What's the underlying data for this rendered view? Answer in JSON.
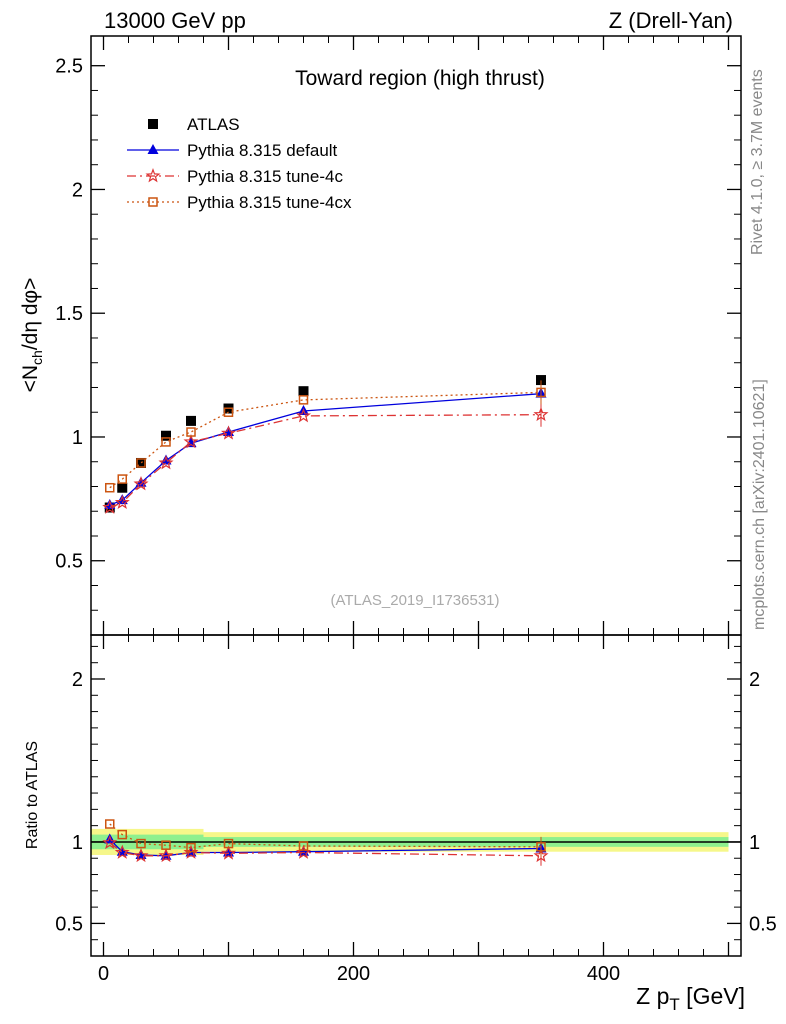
{
  "header": {
    "left": "13000 GeV pp",
    "right": "Z (Drell-Yan)"
  },
  "side": {
    "version": "Rivet 4.1.0, ≥ 3.7M events",
    "source": "mcplots.cern.ch [arXiv:2401.10621]"
  },
  "chart_data": [
    {
      "type": "scatter",
      "panel": "main",
      "title": "Toward region (high thrust)",
      "analysis_label": "(ATLAS_2019_I1736531)",
      "ylabel": "<N_ch/dη dφ>",
      "xlim": [
        -10,
        510
      ],
      "ylim": [
        0.2,
        2.62
      ],
      "yticks": [
        0.5,
        1,
        1.5,
        2,
        2.5
      ],
      "ytick_labels": [
        "0.5",
        "1",
        "1.5",
        "2",
        "2.5"
      ],
      "legend_position": "top-left",
      "x": [
        5,
        15,
        30,
        50,
        70,
        100,
        160,
        350
      ],
      "series": [
        {
          "name": "ATLAS",
          "style": "data",
          "color": "#000000",
          "marker": "square",
          "values": [
            0.715,
            0.795,
            0.895,
            1.005,
            1.065,
            1.115,
            1.185,
            1.23
          ]
        },
        {
          "name": "Pythia 8.315 default",
          "style": "solid",
          "color": "#0000dd",
          "marker": "triangle",
          "values": [
            0.725,
            0.745,
            0.815,
            0.905,
            0.975,
            1.02,
            1.105,
            1.175
          ]
        },
        {
          "name": "Pythia 8.315 tune-4c",
          "style": "dashdot",
          "color": "#dd3333",
          "marker": "star",
          "values": [
            0.715,
            0.735,
            0.81,
            0.895,
            0.98,
            1.015,
            1.085,
            1.09
          ]
        },
        {
          "name": "Pythia 8.315 tune-4cx",
          "style": "dotted",
          "color": "#cc5511",
          "marker": "open-square",
          "values": [
            0.795,
            0.83,
            0.895,
            0.98,
            1.02,
            1.1,
            1.15,
            1.18
          ]
        }
      ]
    },
    {
      "type": "scatter",
      "panel": "ratio",
      "ylabel": "Ratio to ATLAS",
      "xlabel": "Z p_T [GeV]",
      "xlim": [
        -10,
        510
      ],
      "ylim": [
        0.3,
        2.27
      ],
      "yticks": [
        0.5,
        1,
        2
      ],
      "ytick_labels": [
        "0.5",
        "1",
        "2"
      ],
      "xticks": [
        0,
        200,
        400
      ],
      "xtick_labels": [
        "0",
        "200",
        "400"
      ],
      "x": [
        5,
        15,
        30,
        50,
        70,
        100,
        160,
        350
      ],
      "series": [
        {
          "name": "Pythia 8.315 default",
          "values": [
            1.015,
            0.94,
            0.92,
            0.915,
            0.935,
            0.935,
            0.94,
            0.96
          ]
        },
        {
          "name": "Pythia 8.315 tune-4c",
          "values": [
            0.995,
            0.935,
            0.915,
            0.915,
            0.935,
            0.93,
            0.935,
            0.915
          ]
        },
        {
          "name": "Pythia 8.315 tune-4cx",
          "values": [
            1.11,
            1.045,
            0.99,
            0.98,
            0.965,
            0.99,
            0.975,
            0.97
          ]
        }
      ],
      "bands": {
        "green": [
          {
            "x0": -10,
            "x1": 80,
            "lo": 0.955,
            "hi": 1.045
          },
          {
            "x0": 80,
            "x1": 500,
            "lo": 0.97,
            "hi": 1.03
          }
        ],
        "yellow": [
          {
            "x0": -10,
            "x1": 80,
            "lo": 0.92,
            "hi": 1.08
          },
          {
            "x0": 80,
            "x1": 500,
            "lo": 0.94,
            "hi": 1.06
          }
        ]
      }
    }
  ]
}
